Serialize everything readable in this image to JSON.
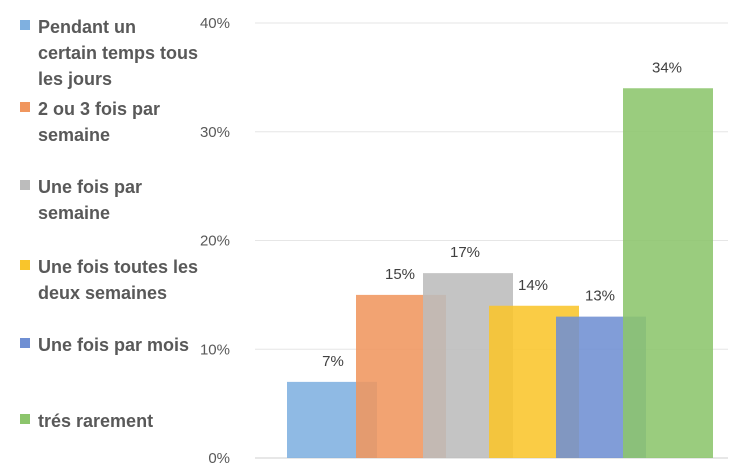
{
  "chart_data": {
    "type": "bar",
    "categories": [
      "Pendant un certain temps tous les jours",
      "2 ou 3 fois par semaine",
      "Une fois par semaine",
      "Une fois toutes les deux semaines",
      "Une fois par mois",
      "trés rarement"
    ],
    "values": [
      7,
      15,
      17,
      14,
      13,
      34
    ],
    "data_labels": [
      "7%",
      "15%",
      "17%",
      "14%",
      "13%",
      "34%"
    ],
    "ylim": [
      0,
      40
    ],
    "yticks": [
      0,
      10,
      20,
      30,
      40
    ],
    "ytick_labels": [
      "0%",
      "10%",
      "20%",
      "30%",
      "40%"
    ],
    "colors": [
      "#7fb0e0",
      "#f0965e",
      "#bcbcbc",
      "#f9c52b",
      "#6f8fd3",
      "#8cc56c"
    ],
    "grid": true,
    "legend_position": "left",
    "title": "",
    "xlabel": "",
    "ylabel": ""
  }
}
